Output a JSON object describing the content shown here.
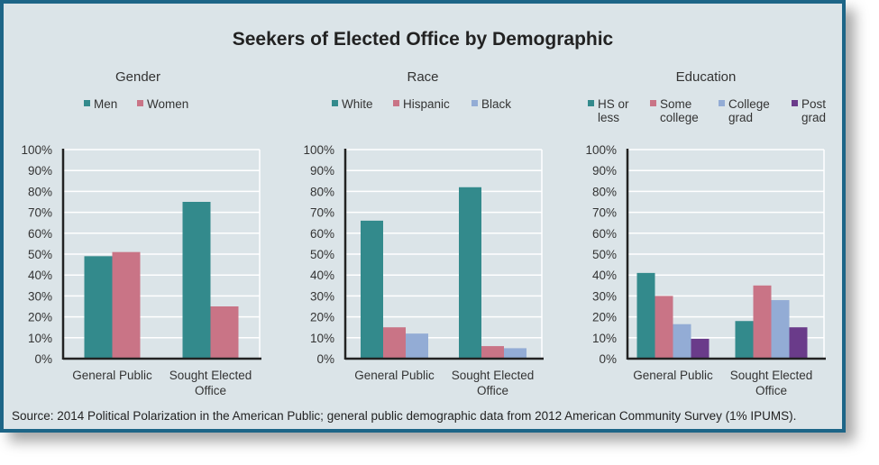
{
  "title": "Seekers of Elected Office by Demographic",
  "source": "Source: 2014 Political Polarization in the American Public; general public demographic data from 2012 American Community Survey (1% IPUMS).",
  "colors": {
    "teal": "#338a8c",
    "pink": "#c97486",
    "lightblue": "#93acd5",
    "purple": "#6a3b8a"
  },
  "chart_data": [
    {
      "type": "bar",
      "title": "Gender",
      "categories": [
        "General Public",
        "Sought Elected Office"
      ],
      "ylim": [
        0,
        100
      ],
      "yticks": [
        "0%",
        "10%",
        "20%",
        "30%",
        "40%",
        "50%",
        "60%",
        "70%",
        "80%",
        "90%",
        "100%"
      ],
      "grid": true,
      "legend": "top",
      "series": [
        {
          "name": "Men",
          "color": "#338a8c",
          "values": [
            49,
            75
          ]
        },
        {
          "name": "Women",
          "color": "#c97486",
          "values": [
            51,
            25
          ]
        }
      ]
    },
    {
      "type": "bar",
      "title": "Race",
      "categories": [
        "General Public",
        "Sought Elected Office"
      ],
      "ylim": [
        0,
        100
      ],
      "yticks": [
        "0%",
        "10%",
        "20%",
        "30%",
        "40%",
        "50%",
        "60%",
        "70%",
        "80%",
        "90%",
        "100%"
      ],
      "grid": true,
      "legend": "top",
      "series": [
        {
          "name": "White",
          "color": "#338a8c",
          "values": [
            66,
            82
          ]
        },
        {
          "name": "Hispanic",
          "color": "#c97486",
          "values": [
            15,
            6
          ]
        },
        {
          "name": "Black",
          "color": "#93acd5",
          "values": [
            12,
            5
          ]
        }
      ]
    },
    {
      "type": "bar",
      "title": "Education",
      "categories": [
        "General Public",
        "Sought Elected Office"
      ],
      "ylim": [
        0,
        100
      ],
      "yticks": [
        "0%",
        "10%",
        "20%",
        "30%",
        "40%",
        "50%",
        "60%",
        "70%",
        "80%",
        "90%",
        "100%"
      ],
      "grid": true,
      "legend": "top",
      "series": [
        {
          "name": "HS or less",
          "color": "#338a8c",
          "values": [
            41,
            18
          ]
        },
        {
          "name": "Some college",
          "color": "#c97486",
          "values": [
            30,
            35
          ]
        },
        {
          "name": "College grad",
          "color": "#93acd5",
          "values": [
            16.5,
            28
          ]
        },
        {
          "name": "Post grad",
          "color": "#6a3b8a",
          "values": [
            9.5,
            15
          ]
        }
      ]
    }
  ]
}
